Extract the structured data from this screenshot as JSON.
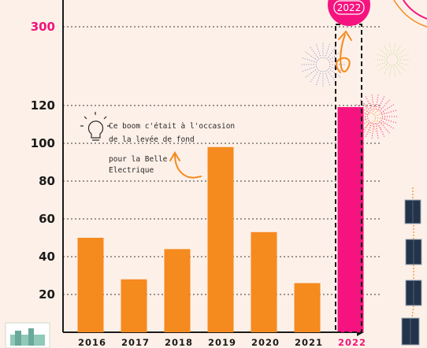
{
  "chart_data": {
    "type": "bar",
    "title": "",
    "xlabel": "",
    "ylabel": "",
    "categories": [
      "2016",
      "2017",
      "2018",
      "2019",
      "2020",
      "2021",
      "2022"
    ],
    "values": [
      50,
      28,
      44,
      98,
      53,
      26,
      300
    ],
    "highlight_category": "2022",
    "y_ticks": [
      "20",
      "40",
      "60",
      "80",
      "100",
      "120",
      "300"
    ],
    "y_axis_break": [
      120,
      300
    ],
    "grid": "dotted horizontal",
    "colors": {
      "bar": "#f58a1f",
      "highlight": "#f5147f",
      "text": "#1a1a1a"
    },
    "annotation": {
      "lines": [
        "Ce boom c'était à l'occasion",
        "de la levée de fond",
        "pour la Belle",
        "Electrique"
      ],
      "icon": "lightbulb-icon"
    },
    "badge": "2022"
  }
}
